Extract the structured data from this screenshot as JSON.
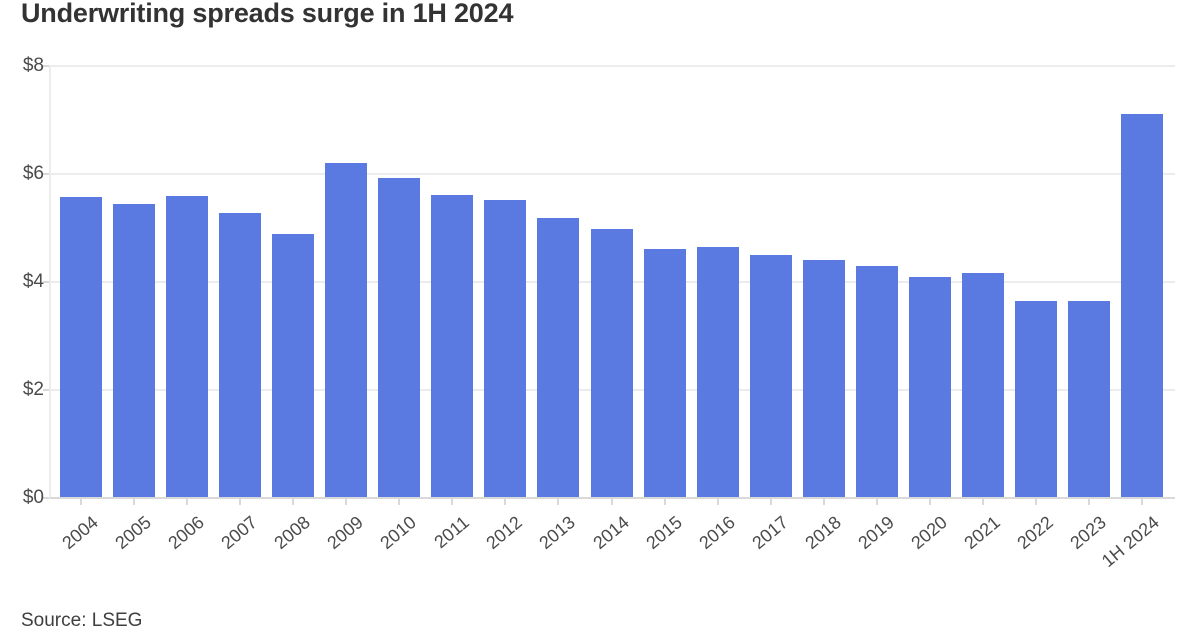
{
  "title": "Underwriting spreads surge in 1H 2024",
  "source": "Source: LSEG",
  "chart_data": {
    "type": "bar",
    "title": "Underwriting spreads surge in 1H 2024",
    "source_label": "Source: LSEG",
    "categories": [
      "2004",
      "2005",
      "2006",
      "2007",
      "2008",
      "2009",
      "2010",
      "2011",
      "2012",
      "2013",
      "2014",
      "2015",
      "2016",
      "2017",
      "2018",
      "2019",
      "2020",
      "2021",
      "2022",
      "2023",
      "1H 2024"
    ],
    "values": [
      5.57,
      5.45,
      5.6,
      5.28,
      4.89,
      6.21,
      5.93,
      5.62,
      5.52,
      5.19,
      4.99,
      4.61,
      4.64,
      4.5,
      4.41,
      4.3,
      4.1,
      4.17,
      3.64,
      3.65,
      7.11
    ],
    "xlabel": "",
    "ylabel": "",
    "ylim": [
      0,
      8
    ],
    "grid": true,
    "legend_position": "none",
    "y_ticks": [
      {
        "label": "$0",
        "value": 0
      },
      {
        "label": "$2",
        "value": 2
      },
      {
        "label": "$4",
        "value": 4
      },
      {
        "label": "$6",
        "value": 6
      },
      {
        "label": "$8",
        "value": 8
      }
    ],
    "x_tick_rotation_deg": -40,
    "colors": {
      "bar": "#5B7AE1",
      "grid": "#ececec",
      "axis": "#d9d9d9",
      "tick_label": "#4b4b4b",
      "title": "#333333",
      "source": "#3f3f3f",
      "background": "#ffffff"
    }
  }
}
